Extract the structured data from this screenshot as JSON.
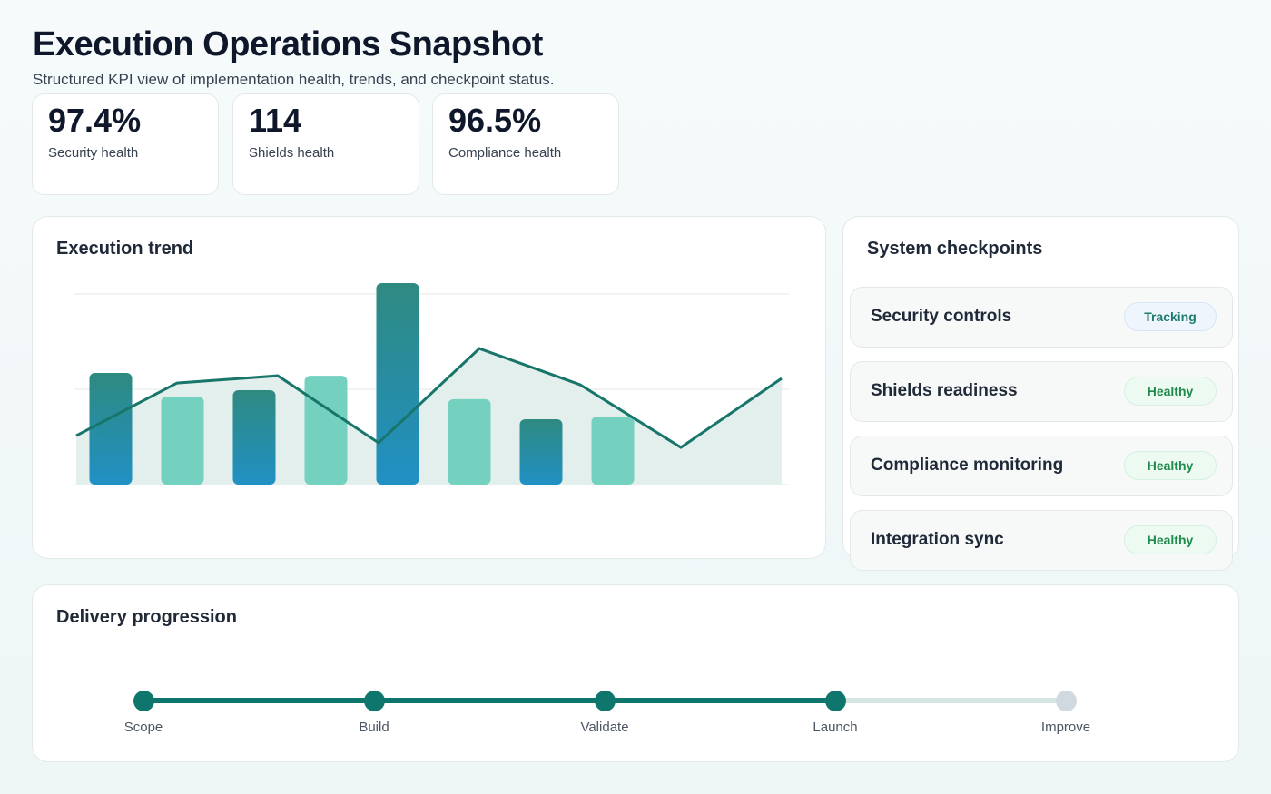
{
  "header": {
    "title": "Execution Operations Snapshot",
    "subtitle": "Structured KPI view of implementation health, trends, and checkpoint status."
  },
  "kpis": [
    {
      "value": "97.4%",
      "label": "Security health"
    },
    {
      "value": "114",
      "label": "Shields health"
    },
    {
      "value": "96.5%",
      "label": "Compliance health"
    }
  ],
  "trend": {
    "title": "Execution trend"
  },
  "chart_data": {
    "type": "bar+line",
    "title": "Execution trend",
    "grid": true,
    "bars": {
      "values": [
        58.6,
        46.2,
        49.5,
        57.1,
        105.7,
        44.8,
        34.3,
        35.7
      ],
      "colors": [
        "gradient-dark",
        "light",
        "gradient-dark",
        "light",
        "gradient-dark",
        "light",
        "gradient-dark",
        "light"
      ]
    },
    "line": {
      "values": [
        25.7,
        53.3,
        57.1,
        21.9,
        71.4,
        52.4,
        19.5,
        55.7
      ]
    },
    "ylim": [
      0,
      100
    ],
    "colors": {
      "bar_dark_top": "#2e8a80",
      "bar_dark_bottom": "#2190c4",
      "bar_light": "#74d1c0",
      "line": "#17756a",
      "area": "#e2efec"
    }
  },
  "checkpoints": {
    "title": "System checkpoints",
    "items": [
      {
        "name": "Security controls",
        "status": "Tracking",
        "kind": "track"
      },
      {
        "name": "Shields readiness",
        "status": "Healthy",
        "kind": "ok"
      },
      {
        "name": "Compliance monitoring",
        "status": "Healthy",
        "kind": "ok"
      },
      {
        "name": "Integration sync",
        "status": "Healthy",
        "kind": "ok"
      }
    ]
  },
  "delivery": {
    "title": "Delivery progression",
    "steps": [
      {
        "label": "Scope",
        "done": true
      },
      {
        "label": "Build",
        "done": true
      },
      {
        "label": "Validate",
        "done": true
      },
      {
        "label": "Launch",
        "done": true
      },
      {
        "label": "Improve",
        "done": false
      }
    ],
    "colors": {
      "done": "#0f766e",
      "pending": "#d1d9e0"
    }
  }
}
